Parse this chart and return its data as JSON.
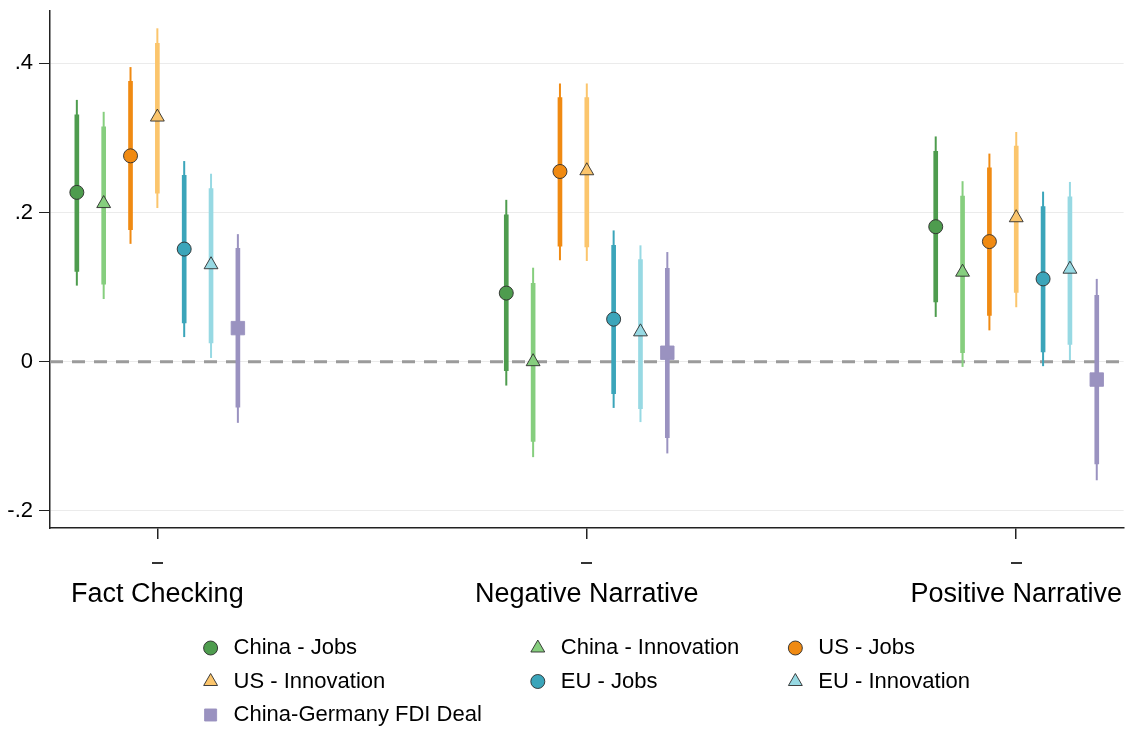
{
  "chart_data": {
    "type": "scatter",
    "categories": [
      "Fact Checking",
      "Negative Narrative",
      "Positive Narrative"
    ],
    "ylim": [
      -0.223,
      0.471
    ],
    "yticks": [
      {
        "value": -0.2,
        "label": "-.2"
      },
      0,
      {
        "value": 0.2,
        "label": ".2"
      },
      {
        "value": 0.4,
        "label": ".4"
      }
    ],
    "grid": "y",
    "legend": "bottom",
    "ref_lines": [
      {
        "axis": "y",
        "value": 0,
        "color": "#9b9b9b",
        "line_style": "dashed"
      }
    ],
    "series": [
      {
        "name": "China - Jobs",
        "marker": "circle",
        "color": "#4e9c4e",
        "values": [
          0.227,
          0.092,
          0.181
        ],
        "errors": [
          [
            0.102,
            0.351
          ],
          [
            -0.032,
            0.217
          ],
          [
            0.06,
            0.302
          ]
        ]
      },
      {
        "name": "China - Innovation",
        "marker": "triangle",
        "color": "#86ce7e",
        "values": [
          0.212,
          0.0,
          0.12
        ],
        "errors": [
          [
            0.084,
            0.335
          ],
          [
            -0.128,
            0.126
          ],
          [
            -0.007,
            0.242
          ]
        ]
      },
      {
        "name": "US - Jobs",
        "marker": "circle",
        "color": "#f08a12",
        "values": [
          0.276,
          0.255,
          0.161
        ],
        "errors": [
          [
            0.158,
            0.395
          ],
          [
            0.136,
            0.373
          ],
          [
            0.042,
            0.279
          ]
        ]
      },
      {
        "name": "US - Innovation",
        "marker": "triangle",
        "color": "#fbc56c",
        "values": [
          0.328,
          0.256,
          0.193
        ],
        "errors": [
          [
            0.206,
            0.447
          ],
          [
            0.135,
            0.373
          ],
          [
            0.073,
            0.308
          ]
        ]
      },
      {
        "name": "EU - Jobs",
        "marker": "circle",
        "color": "#3ba5ba",
        "values": [
          0.151,
          0.057,
          0.111
        ],
        "errors": [
          [
            0.033,
            0.269
          ],
          [
            -0.062,
            0.176
          ],
          [
            -0.006,
            0.228
          ]
        ]
      },
      {
        "name": "EU - Innovation",
        "marker": "triangle",
        "color": "#97d9e3",
        "values": [
          0.13,
          0.04,
          0.124
        ],
        "errors": [
          [
            0.005,
            0.252
          ],
          [
            -0.081,
            0.156
          ],
          [
            0.002,
            0.241
          ]
        ]
      },
      {
        "name": "China-Germany FDI Deal",
        "marker": "square",
        "color": "#9a92c0",
        "values": [
          0.045,
          0.012,
          -0.024
        ],
        "errors": [
          [
            -0.082,
            0.171
          ],
          [
            -0.123,
            0.147
          ],
          [
            -0.159,
            0.111
          ]
        ]
      },
      {
        "type": "bar",
        "color": "#4e9c4e",
        "base": [
          0.121,
          -0.012,
          0.08
        ],
        "values": [
          0.21,
          0.209,
          0.202
        ]
      },
      {
        "type": "bar",
        "color": "#86ce7e",
        "base": [
          0.104,
          -0.107,
          0.012
        ],
        "values": [
          0.211,
          0.212,
          0.21
        ]
      },
      {
        "type": "bar",
        "color": "#f08a12",
        "base": [
          0.177,
          0.155,
          0.062
        ],
        "values": [
          0.199,
          0.199,
          0.198
        ]
      },
      {
        "type": "bar",
        "color": "#fbc56c",
        "base": [
          0.226,
          0.154,
          0.093
        ],
        "values": [
          0.201,
          0.2,
          0.196
        ]
      },
      {
        "type": "bar",
        "color": "#3ba5ba",
        "base": [
          0.052,
          -0.043,
          0.013
        ],
        "values": [
          0.198,
          0.199,
          0.195
        ]
      },
      {
        "type": "bar",
        "color": "#97d9e3",
        "base": [
          0.025,
          -0.063,
          0.023
        ],
        "values": [
          0.207,
          0.2,
          0.198
        ]
      },
      {
        "type": "bar",
        "color": "#9a92c0",
        "base": [
          -0.061,
          -0.102,
          -0.137
        ],
        "values": [
          0.213,
          0.227,
          0.226
        ]
      }
    ]
  }
}
